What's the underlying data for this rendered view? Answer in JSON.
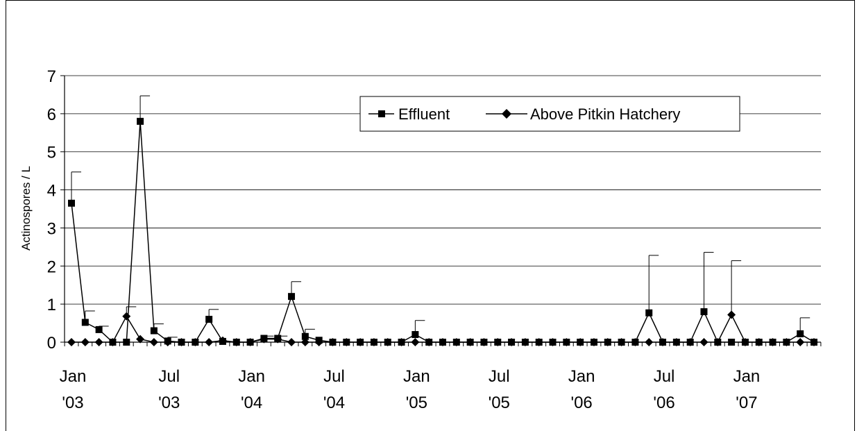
{
  "chart_data": {
    "type": "line",
    "title": "",
    "xlabel": "",
    "ylabel": "Actinospores / L",
    "ylim": [
      0,
      7
    ],
    "yticks": [
      0,
      1,
      2,
      3,
      4,
      5,
      6,
      7
    ],
    "grid": "horizontal",
    "legend_position": "top-right",
    "x_tick_labels": [
      {
        "index": 0,
        "line1": "Jan",
        "line2": "'03"
      },
      {
        "index": 7,
        "line1": "Jul",
        "line2": "'03"
      },
      {
        "index": 13,
        "line1": "Jan",
        "line2": "'04"
      },
      {
        "index": 19,
        "line1": "Jul",
        "line2": "'04"
      },
      {
        "index": 25,
        "line1": "Jan",
        "line2": "'05"
      },
      {
        "index": 31,
        "line1": "Jul",
        "line2": "'05"
      },
      {
        "index": 37,
        "line1": "Jan",
        "line2": "'06"
      },
      {
        "index": 43,
        "line1": "Jul",
        "line2": "'06"
      },
      {
        "index": 49,
        "line1": "Jan",
        "line2": "'07"
      }
    ],
    "series": [
      {
        "name": "Effluent",
        "marker": "square",
        "values": [
          3.65,
          0.52,
          0.33,
          0,
          0,
          5.8,
          0.3,
          0.03,
          0,
          0,
          0.6,
          0.02,
          0,
          0,
          0.1,
          0.1,
          1.2,
          0.15,
          0.05,
          0,
          0,
          0,
          0,
          0,
          0,
          0.2,
          0,
          0,
          0,
          0,
          0,
          0,
          0,
          0,
          0,
          0,
          0,
          0,
          0,
          0,
          0,
          0,
          0.77,
          0,
          0,
          0,
          0.8,
          0,
          0,
          0,
          0,
          0,
          0,
          0.22,
          0
        ],
        "error_upper": [
          4.47,
          0.82,
          0.42,
          null,
          null,
          6.47,
          0.48,
          0.13,
          null,
          null,
          0.86,
          null,
          null,
          null,
          0.16,
          0.16,
          1.59,
          0.34,
          null,
          null,
          null,
          null,
          null,
          null,
          null,
          0.57,
          null,
          null,
          null,
          null,
          null,
          null,
          null,
          null,
          null,
          null,
          null,
          null,
          null,
          null,
          null,
          null,
          2.28,
          null,
          null,
          null,
          2.36,
          null,
          null,
          null,
          null,
          null,
          null,
          0.64,
          null
        ]
      },
      {
        "name": "Above Pitkin Hatchery",
        "marker": "diamond",
        "values": [
          0,
          0,
          0,
          0,
          0.68,
          0.08,
          0,
          0,
          0,
          0,
          0,
          0.04,
          0,
          0,
          0.08,
          0.08,
          0,
          0,
          0,
          0,
          0,
          0,
          0,
          0,
          0,
          0,
          0,
          0,
          0,
          0,
          0,
          0,
          0,
          0,
          0,
          0,
          0,
          0,
          0,
          0,
          0,
          0,
          0,
          0,
          0,
          0,
          0,
          0,
          0.72,
          0,
          0,
          0,
          0,
          0,
          0
        ],
        "error_upper": [
          null,
          null,
          null,
          null,
          0.93,
          null,
          null,
          null,
          null,
          null,
          null,
          null,
          null,
          null,
          null,
          null,
          null,
          null,
          null,
          null,
          null,
          null,
          null,
          null,
          null,
          null,
          null,
          null,
          null,
          null,
          null,
          null,
          null,
          null,
          null,
          null,
          null,
          null,
          null,
          null,
          null,
          null,
          null,
          null,
          null,
          null,
          null,
          null,
          2.14,
          null,
          null,
          null,
          null,
          null,
          null
        ]
      }
    ]
  }
}
